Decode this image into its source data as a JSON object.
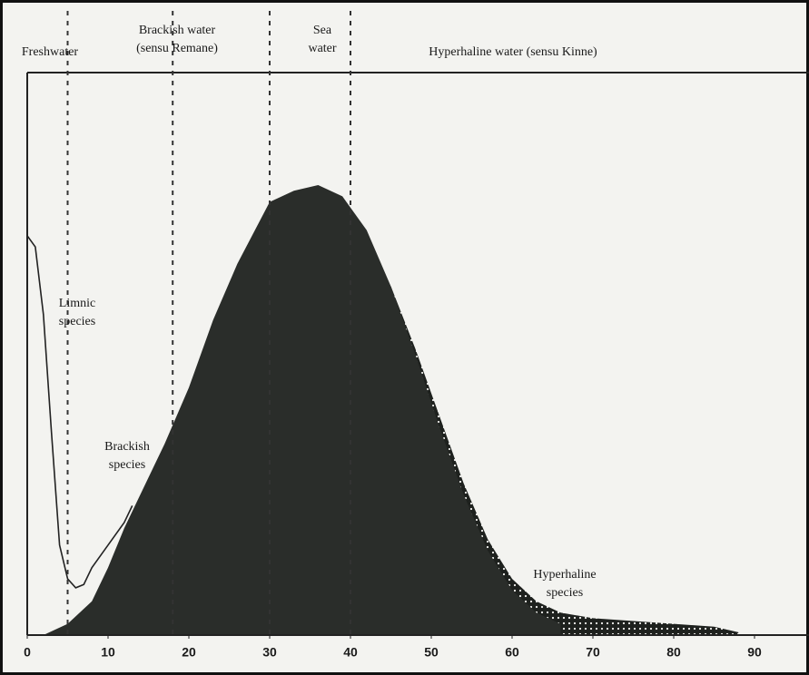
{
  "chart_data": {
    "type": "area",
    "zones": [
      "Freshwater",
      "Brackish water",
      "(sensu Remane)",
      "Sea",
      "water",
      "Hyperhaline water (sensu Kinne)"
    ],
    "boundaries": [
      5,
      18,
      30,
      40
    ],
    "series": [
      {
        "name": "Limnic species",
        "color": "#222222",
        "kind": "line",
        "x": [
          0,
          1,
          2,
          3,
          4,
          5,
          6,
          7,
          8,
          10,
          12,
          13
        ],
        "values": [
          71,
          69,
          57,
          36,
          16,
          10,
          8.4,
          9,
          12,
          16,
          20,
          23
        ]
      },
      {
        "name": "Hyperhaline species",
        "color": "#1e211e",
        "kind": "dotted",
        "x": [
          45,
          48,
          51,
          54,
          57,
          60,
          63,
          66,
          70,
          75,
          80,
          85,
          88
        ],
        "values": [
          62,
          51,
          39,
          27,
          17,
          10,
          6,
          4,
          3,
          2.5,
          2,
          1.5,
          0.5
        ]
      },
      {
        "name": "Brackish species",
        "color": "#2a2d2a",
        "kind": "fill",
        "x": [
          2,
          5,
          8,
          10,
          12,
          14,
          17,
          20,
          23,
          26,
          30,
          33,
          36,
          39,
          42,
          45,
          48,
          51,
          54,
          57,
          60,
          63,
          66
        ],
        "values": [
          0,
          2,
          6,
          12,
          19,
          25,
          34,
          44,
          56,
          66,
          77,
          79,
          80,
          78,
          72,
          62,
          50,
          37,
          25,
          15,
          8,
          4,
          2
        ]
      }
    ],
    "curve_labels": [
      [
        "Limnic",
        "species"
      ],
      [
        "Brackish",
        "species"
      ],
      [
        "Hyperhaline",
        "species"
      ]
    ],
    "xlim": [
      0,
      96
    ],
    "ylim": [
      0,
      100
    ],
    "xticks": [
      0,
      10,
      20,
      30,
      40,
      50,
      60,
      70,
      80,
      90
    ]
  }
}
